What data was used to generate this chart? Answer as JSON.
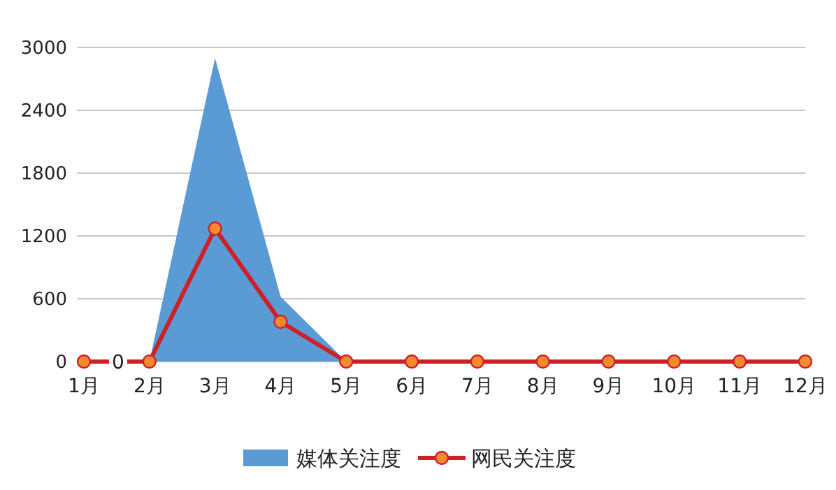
{
  "chart_data": {
    "type": "line",
    "categories": [
      "1月",
      "2月",
      "3月",
      "4月",
      "5月",
      "6月",
      "7月",
      "8月",
      "9月",
      "10月",
      "11月",
      "12月"
    ],
    "series": [
      {
        "name": "媒体关注度",
        "type": "area",
        "color": "#5b9bd5",
        "values": [
          0,
          0,
          2900,
          620,
          0,
          0,
          0,
          0,
          0,
          0,
          0,
          0
        ]
      },
      {
        "name": "网民关注度",
        "marker": "circle",
        "color": "#d02027",
        "values": [
          0,
          0,
          1270,
          380,
          0,
          0,
          0,
          0,
          0,
          0,
          0,
          0
        ]
      }
    ],
    "ylim": [
      0,
      3000
    ],
    "yticks": [
      0,
      600,
      1200,
      1800,
      2400,
      3000
    ],
    "grid": "y",
    "legend": "bottom",
    "annotations": [
      {
        "text": "0",
        "x": "1月",
        "y": 0
      }
    ]
  }
}
